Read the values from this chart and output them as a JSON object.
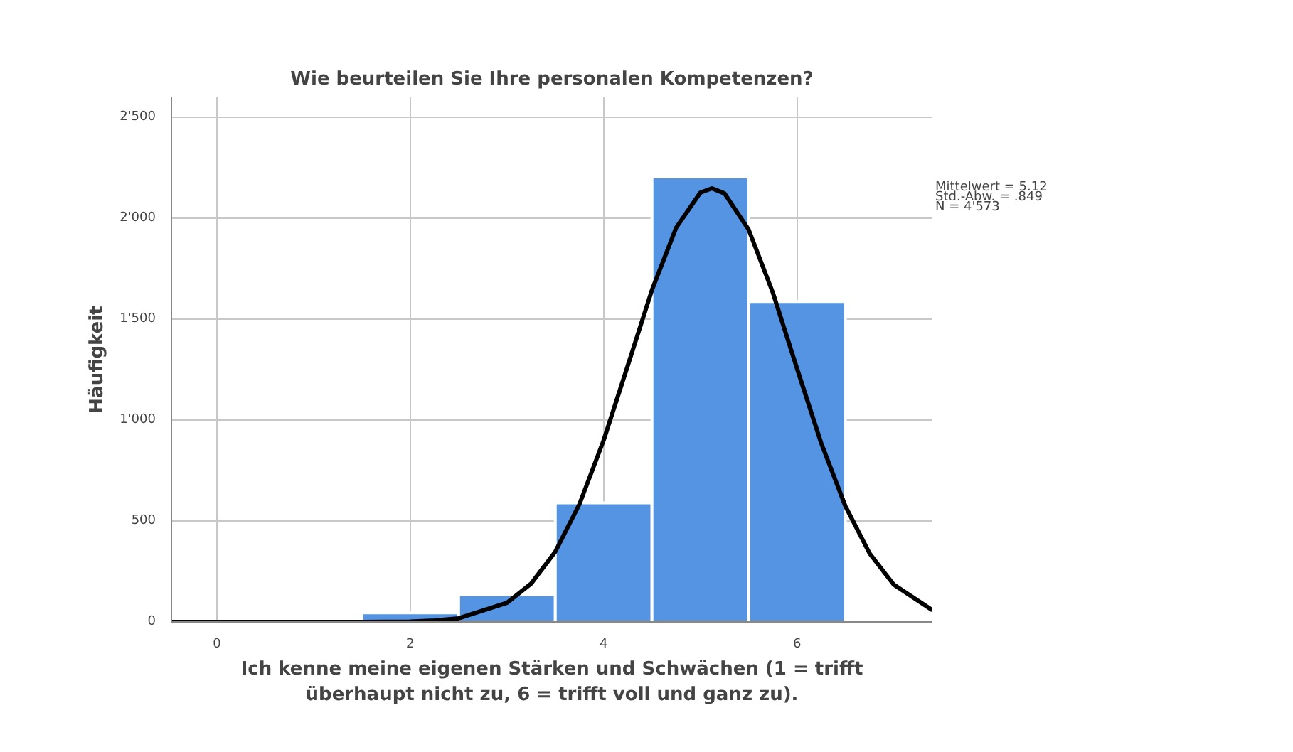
{
  "chart_data": {
    "type": "histogram",
    "title": "Wie beurteilen Sie Ihre personalen Kompetenzen?",
    "xlabel": "Ich kenne meine eigenen Stärken und Schwächen (1 = trifft überhaupt nicht zu, 6 = trifft voll und ganz zu).",
    "ylabel": "Häufigkeit",
    "bins": [
      0.5,
      1.5,
      2.5,
      3.5,
      4.5,
      5.5,
      6.5
    ],
    "values": [
      10,
      45,
      135,
      590,
      2205,
      1588
    ],
    "color": "#5494e2",
    "series": [
      {
        "type": "line",
        "color": "#000000",
        "x": [
          -0.47,
          1.5,
          2,
          2.25,
          2.5,
          3,
          3.25,
          3.5,
          3.75,
          4,
          4.25,
          4.5,
          4.75,
          5,
          5.12,
          5.25,
          5.5,
          5.75,
          6,
          6.25,
          6.5,
          6.75,
          7,
          7.4
        ],
        "values": [
          0,
          0,
          2,
          7,
          18,
          95,
          190,
          348,
          584,
          900,
          1271,
          1646,
          1954,
          2128,
          2149,
          2124,
          1944,
          1632,
          1256,
          886,
          574,
          340,
          185,
          58
        ]
      }
    ],
    "xlim": [
      -0.47,
      7.4
    ],
    "ylim": [
      0,
      2600
    ],
    "xticks": [
      0,
      2,
      4,
      6
    ],
    "yticks": [
      0,
      500,
      {
        "value": 1000,
        "label": "1'000"
      },
      {
        "value": 1500,
        "label": "1'500"
      },
      {
        "value": 2000,
        "label": "2'000"
      },
      {
        "value": 2500,
        "label": "2'500"
      }
    ],
    "grid": true,
    "annotations": [
      "Mittelwert = 5.12",
      "Std.-Abw. = .849",
      "N = 4'573"
    ]
  }
}
